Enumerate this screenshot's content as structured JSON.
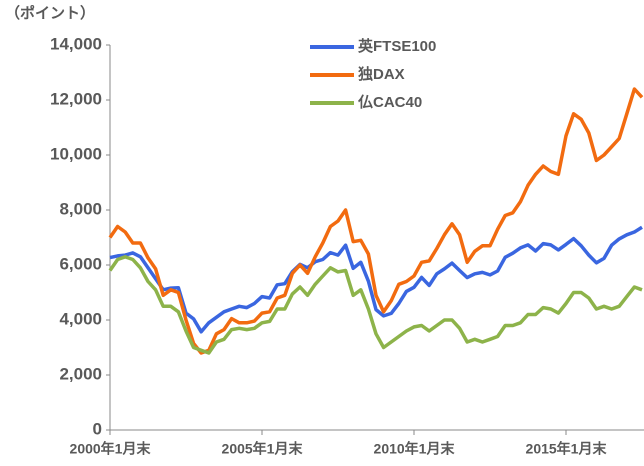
{
  "chart_data": {
    "type": "line",
    "y_label": "（ポイント）",
    "categories": [
      "2000年1月末",
      null,
      null,
      null,
      null,
      null,
      null,
      null,
      null,
      null,
      null,
      null,
      null,
      null,
      null,
      null,
      null,
      null,
      null,
      null,
      "2005年1月末",
      null,
      null,
      null,
      null,
      null,
      null,
      null,
      null,
      null,
      null,
      null,
      null,
      null,
      null,
      null,
      null,
      null,
      null,
      null,
      "2010年1月末",
      null,
      null,
      null,
      null,
      null,
      null,
      null,
      null,
      null,
      null,
      null,
      null,
      null,
      null,
      null,
      null,
      null,
      null,
      null,
      "2015年1月末",
      null,
      null,
      null,
      null,
      null,
      null,
      null,
      null,
      null,
      null
    ],
    "series": [
      {
        "name": "英FTSE100",
        "color": "#3a66e0",
        "values": [
          6270,
          6330,
          6360,
          6440,
          6300,
          5900,
          5500,
          5100,
          5160,
          5170,
          4250,
          4040,
          3570,
          3900,
          4100,
          4300,
          4400,
          4500,
          4450,
          4600,
          4850,
          4800,
          5280,
          5320,
          5760,
          6020,
          5900,
          6120,
          6200,
          6450,
          6360,
          6720,
          5880,
          6100,
          5410,
          4380,
          4150,
          4240,
          4600,
          5040,
          5190,
          5550,
          5260,
          5680,
          5860,
          6070,
          5800,
          5540,
          5680,
          5730,
          5640,
          5780,
          6280,
          6430,
          6620,
          6730,
          6510,
          6780,
          6730,
          6550,
          6750,
          6960,
          6700,
          6360,
          6080,
          6240,
          6720,
          6950,
          7100,
          7200,
          7370
        ]
      },
      {
        "name": "独DAX",
        "color": "#f26b10",
        "values": [
          7000,
          7400,
          7200,
          6800,
          6800,
          6260,
          5860,
          4900,
          5100,
          5000,
          4000,
          3150,
          2800,
          2900,
          3500,
          3650,
          4050,
          3900,
          3900,
          3960,
          4250,
          4300,
          4800,
          4900,
          5700,
          6000,
          5700,
          6300,
          6800,
          7400,
          7600,
          8000,
          6850,
          6900,
          6400,
          4900,
          4300,
          4700,
          5300,
          5400,
          5600,
          6100,
          6150,
          6600,
          7100,
          7500,
          7100,
          6100,
          6500,
          6700,
          6700,
          7300,
          7800,
          7900,
          8300,
          8900,
          9300,
          9600,
          9400,
          9300,
          10700,
          11500,
          11300,
          10800,
          9800,
          10000,
          10300,
          10600,
          11500,
          12400,
          12100
        ]
      },
      {
        "name": "仏CAC40",
        "color": "#8db34a",
        "values": [
          5800,
          6200,
          6300,
          6200,
          5900,
          5400,
          5100,
          4500,
          4500,
          4300,
          3600,
          3000,
          2900,
          2800,
          3200,
          3300,
          3650,
          3700,
          3650,
          3700,
          3900,
          3950,
          4400,
          4400,
          4950,
          5200,
          4900,
          5300,
          5600,
          5900,
          5750,
          5800,
          4900,
          5100,
          4400,
          3500,
          3000,
          3200,
          3400,
          3600,
          3750,
          3800,
          3600,
          3800,
          4000,
          4000,
          3700,
          3200,
          3300,
          3200,
          3300,
          3400,
          3800,
          3800,
          3900,
          4200,
          4200,
          4450,
          4400,
          4250,
          4600,
          5000,
          5000,
          4800,
          4400,
          4500,
          4400,
          4500,
          4850,
          5200,
          5100
        ]
      }
    ],
    "ylim": [
      0,
      14000
    ],
    "yticks": [
      0,
      {
        "value": 2000,
        "label": "2,000"
      },
      {
        "value": 4000,
        "label": "4,000"
      },
      {
        "value": 6000,
        "label": "6,000"
      },
      {
        "value": 8000,
        "label": "8,000"
      },
      {
        "value": 10000,
        "label": "10,000"
      },
      {
        "value": 12000,
        "label": "12,000"
      },
      {
        "value": 14000,
        "label": "14,000"
      }
    ]
  }
}
